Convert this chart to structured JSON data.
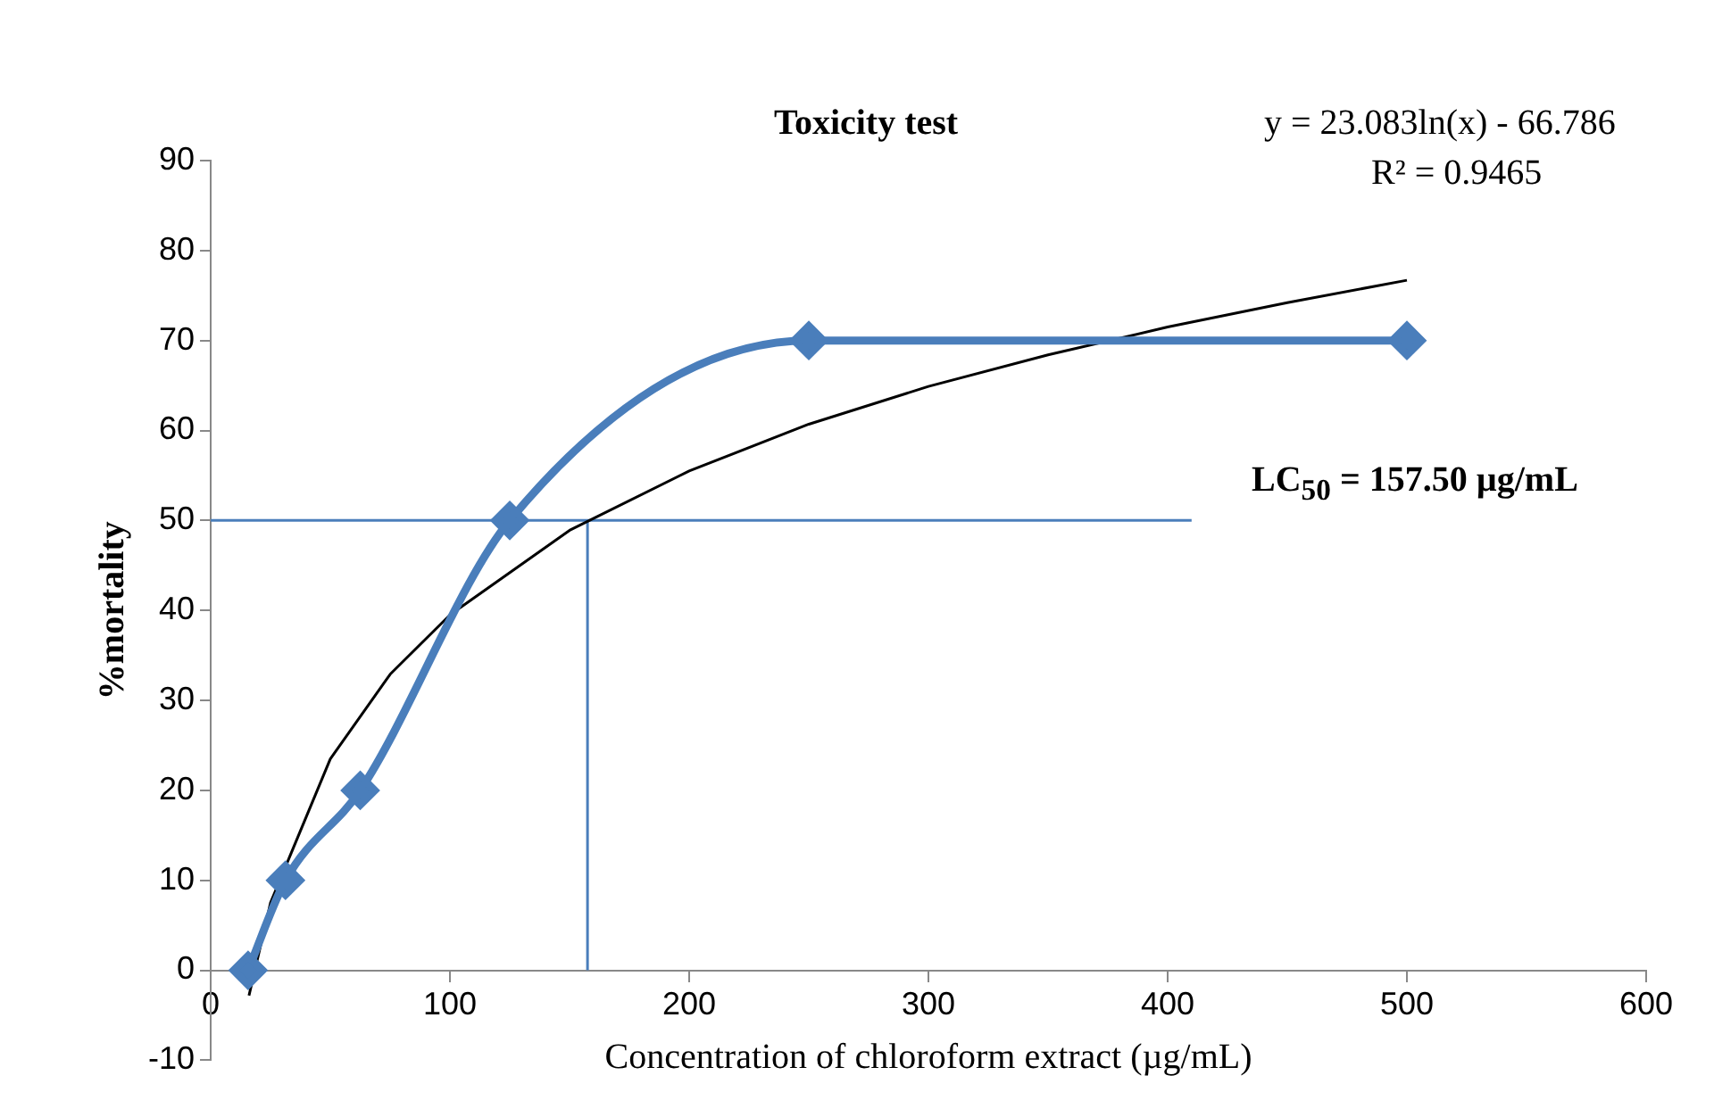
{
  "chart_data": {
    "type": "line",
    "title": "Toxicity test",
    "xlabel": "Concentration of chloroform extract (µg/mL)",
    "ylabel": "%mortality",
    "xlim": [
      0,
      600
    ],
    "xticks": [
      0,
      100,
      200,
      300,
      400,
      500,
      600
    ],
    "ylim": [
      -10,
      90
    ],
    "yticks": [
      -10,
      0,
      10,
      20,
      30,
      40,
      50,
      60,
      70,
      80,
      90
    ],
    "grid": false,
    "legend": false,
    "marker": "diamond",
    "line_style": "solid",
    "series": [
      {
        "color": "#4a7ebb",
        "x": [
          15.625,
          31.25,
          62.5,
          125,
          250,
          500
        ],
        "values": [
          0,
          10,
          20,
          50,
          70,
          70
        ]
      },
      {
        "type": "line",
        "color": "#000000",
        "marker": "none",
        "x": [
          16,
          25,
          50,
          75,
          100,
          150,
          200,
          250,
          300,
          350,
          400,
          450,
          500
        ],
        "values": [
          -2.8,
          7.5,
          23.5,
          32.9,
          39.5,
          48.9,
          55.5,
          60.7,
          64.9,
          68.4,
          71.5,
          74.2,
          76.7
        ]
      },
      {
        "type": "line",
        "color": "#4a7ebb",
        "marker": "none",
        "x": [
          0,
          410
        ],
        "values": [
          50,
          50
        ]
      },
      {
        "type": "line",
        "color": "#4a7ebb",
        "marker": "none",
        "x": [
          157.5,
          157.5
        ],
        "values": [
          0,
          50
        ]
      }
    ],
    "annotations": [
      "y = 23.083ln(x) - 66.786",
      "R² = 0.9465",
      "LC$_{50}$ = 157.50 µg/mL"
    ]
  }
}
